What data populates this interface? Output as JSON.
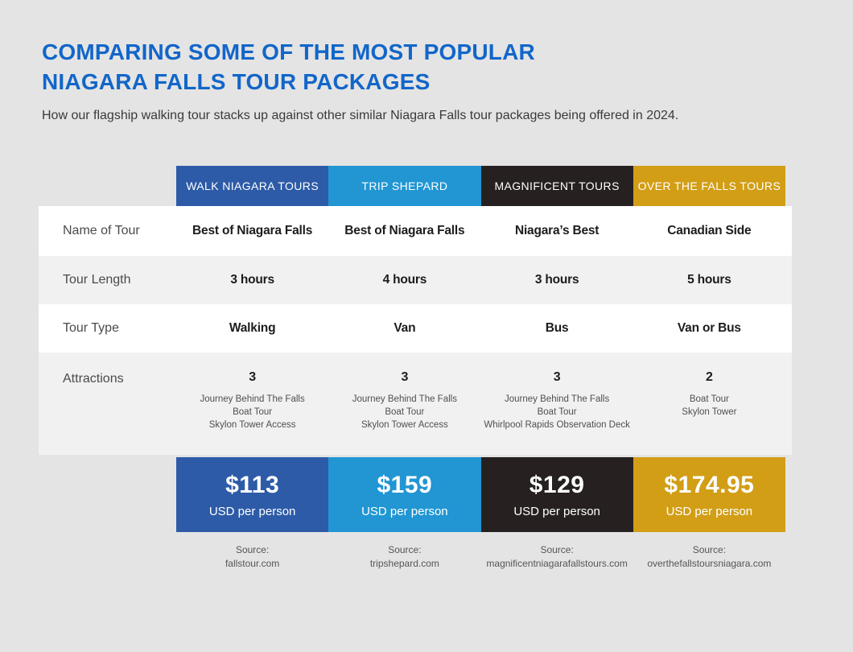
{
  "chart_data": {
    "type": "table",
    "title_lines": [
      "COMPARING SOME OF THE MOST POPULAR",
      "NIAGARA FALLS TOUR PACKAGES"
    ],
    "subtitle": "How our flagship walking tour stacks up against other similar Niagara Falls tour packages being offered in 2024.",
    "source_label": "Source:",
    "row_labels": [
      "Name of Tour",
      "Tour Length",
      "Tour Type",
      "Attractions"
    ],
    "columns": [
      {
        "header": "WALK NIAGARA TOURS",
        "color": "#2d5ba7",
        "name_of_tour": "Best of Niagara Falls",
        "tour_length": "3 hours",
        "tour_type": "Walking",
        "attractions_count": "3",
        "attractions": [
          "Journey Behind The Falls",
          "Boat Tour",
          "Skylon Tower Access"
        ],
        "price": "$113",
        "price_unit": "USD per person",
        "source": "fallstour.com"
      },
      {
        "header": "TRIP SHEPARD",
        "color": "#2196d3",
        "name_of_tour": "Best of Niagara Falls",
        "tour_length": "4 hours",
        "tour_type": "Van",
        "attractions_count": "3",
        "attractions": [
          "Journey Behind The Falls",
          "Boat Tour",
          "Skylon Tower Access"
        ],
        "price": "$159",
        "price_unit": "USD per person",
        "source": "tripshepard.com"
      },
      {
        "header": "MAGNIFICENT TOURS",
        "color": "#262120",
        "name_of_tour": "Niagara’s Best",
        "tour_length": "3 hours",
        "tour_type": "Bus",
        "attractions_count": "3",
        "attractions": [
          "Journey Behind The Falls",
          "Boat Tour",
          "Whirlpool Rapids Observation Deck"
        ],
        "price": "$129",
        "price_unit": "USD per person",
        "source": "magnificentniagarafallstours.com"
      },
      {
        "header": "OVER THE FALLS TOURS",
        "color": "#d29e16",
        "name_of_tour": "Canadian Side",
        "tour_length": "5 hours",
        "tour_type": "Van or Bus",
        "attractions_count": "2",
        "attractions": [
          "Boat Tour",
          "Skylon Tower"
        ],
        "price": "$174.95",
        "price_unit": "USD per person",
        "source": "overthefallstoursniagara.com"
      }
    ],
    "colors": {
      "title": "#1266c9",
      "background": "#e4e4e4",
      "row_white": "#ffffff",
      "row_alt": "#f1f1f1"
    }
  }
}
